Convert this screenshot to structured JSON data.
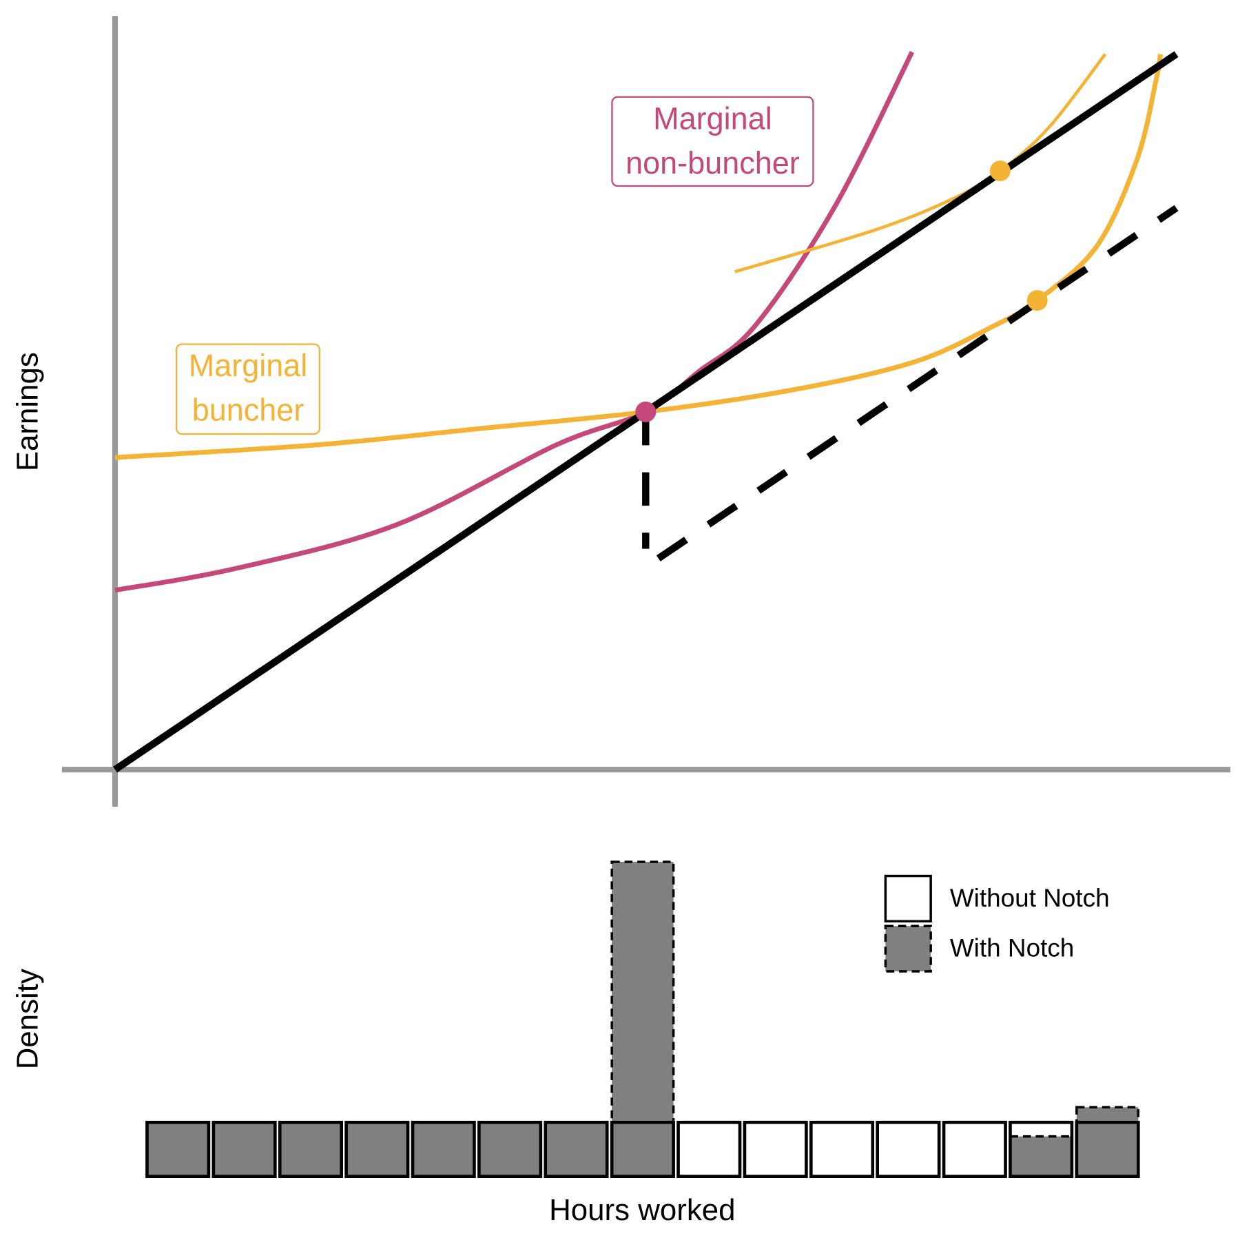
{
  "chart_data": [
    {
      "type": "line",
      "ylabel": "Earnings",
      "xlim": [
        -5.0,
        105.1
      ],
      "ylim": [
        -3.5,
        71.0
      ],
      "axis_color": "#999999",
      "series": [
        {
          "color": "#000000",
          "weight": "thick",
          "dashed": false,
          "x": [
            0,
            100
          ],
          "y": [
            0,
            67.4
          ]
        },
        {
          "color": "#000000",
          "weight": "thick",
          "dashed": true,
          "x": [
            50,
            50,
            50.6,
            51.2,
            100
          ],
          "y": [
            33.7,
            20.8,
            null,
            19.9,
            52.9
          ]
        },
        {
          "color": "#c4487a",
          "weight": "medium",
          "dashed": false,
          "x": [
            0,
            11.6,
            26.6,
            41.6,
            50,
            55,
            60.3,
            67.8,
            75.1
          ],
          "y": [
            16.9,
            19.0,
            23.1,
            30.6,
            33.7,
            37.5,
            41.8,
            53.0,
            67.6
          ]
        },
        {
          "color": "#f5b335",
          "weight": "medium",
          "dashed": false,
          "x": [
            0,
            19.1,
            34.1,
            50,
            64.0,
            75.3,
            82.8,
            86.9,
            92.5,
            96.3,
            98.1,
            98.5
          ],
          "y": [
            29.4,
            30.6,
            32.1,
            33.7,
            35.8,
            38.4,
            41.8,
            44.2,
            49.3,
            57.5,
            65.0,
            67.4
          ]
        },
        {
          "color": "#f5b335",
          "weight": "thin",
          "dashed": false,
          "x": [
            58.4,
            71.5,
            79.0,
            83.4,
            88.0,
            93.3
          ],
          "y": [
            46.9,
            50.8,
            53.8,
            56.4,
            60.5,
            67.4
          ]
        }
      ],
      "points": {
        "x": [
          50,
          83.4,
          86.9
        ],
        "y": [
          33.7,
          56.4,
          44.2
        ],
        "colors": [
          "#c4487a",
          "#f5b335",
          "#f5b335"
        ]
      },
      "annotations": [
        {
          "lines": [
            "Marginal",
            "non-buncher"
          ],
          "color": "#c4487a"
        },
        {
          "lines": [
            "Marginal",
            "buncher"
          ],
          "color": "#f5b335"
        }
      ]
    },
    {
      "type": "bar",
      "xlabel": "Hours worked",
      "ylabel": "Density",
      "ylim": [
        0,
        6
      ],
      "categories": [
        null,
        null,
        null,
        null,
        null,
        null,
        null,
        null,
        null,
        null,
        null,
        null,
        null,
        null,
        null
      ],
      "series": [
        {
          "name": "Without Notch",
          "color": "#ffffff",
          "dashed": false,
          "values": [
            1,
            1,
            1,
            1,
            1,
            1,
            1,
            1,
            1,
            1,
            1,
            1,
            1,
            1,
            1
          ]
        },
        {
          "name": "With Notch",
          "color": "#808080",
          "dashed": true,
          "values": [
            1,
            1,
            1,
            1,
            1,
            1,
            1,
            5.82,
            0,
            0,
            0,
            0,
            0,
            0.74,
            1.28
          ]
        }
      ]
    }
  ]
}
